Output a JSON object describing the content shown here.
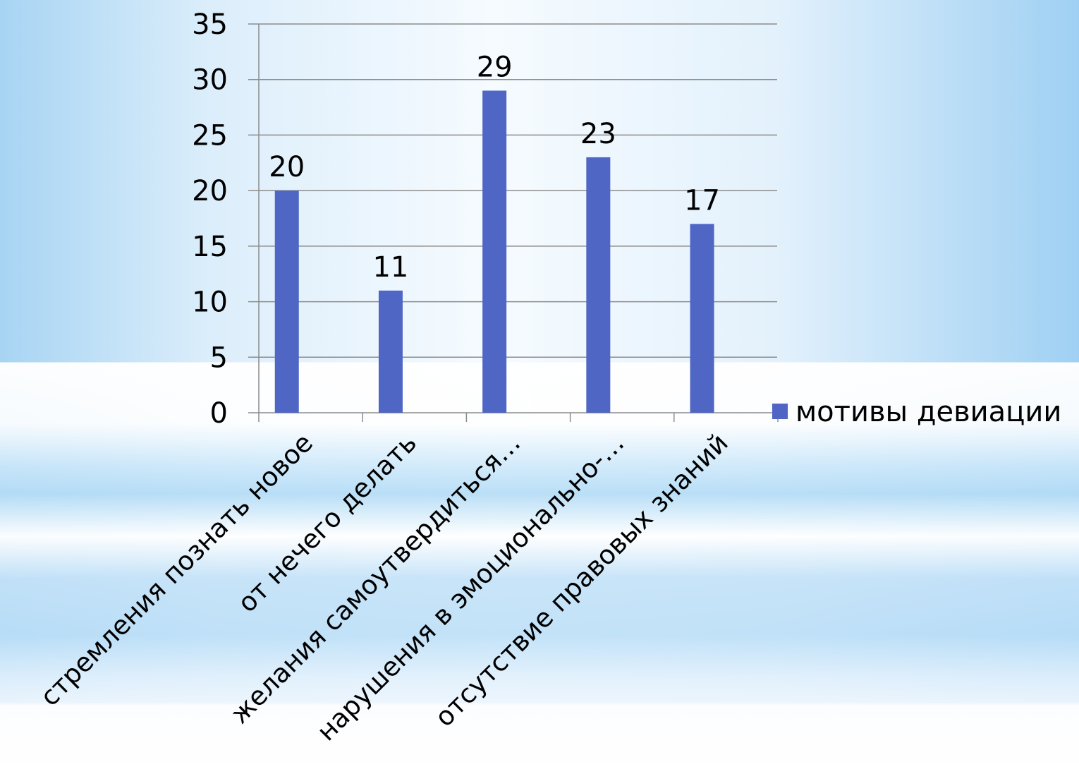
{
  "chart_data": {
    "type": "bar",
    "categories": [
      "стремления познать новое",
      "от нечего делать",
      "желания самоутвердиться…",
      "нарушения в эмоционально-…",
      "отсутствие правовых знаний"
    ],
    "series": [
      {
        "name": "мотивы девиации",
        "values": [
          20,
          11,
          29,
          23,
          17
        ]
      }
    ],
    "ylim": [
      0,
      35
    ],
    "yticks": [
      0,
      5,
      10,
      15,
      20,
      25,
      30,
      35
    ],
    "grid": true,
    "legend_position": "right",
    "data_labels": true,
    "colors": {
      "bar": "#4f66c5",
      "grid": "#8c8c8c",
      "axis": "#8c8c8c"
    }
  }
}
